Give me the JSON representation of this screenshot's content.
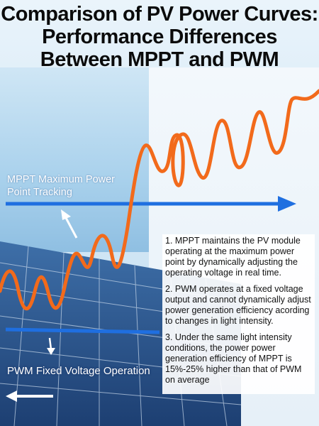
{
  "title": {
    "line1": "Comparison of PV Power Curves:",
    "line2": "Performance Differences",
    "line3": "Between MPPT and PWM"
  },
  "labels": {
    "mppt_line1": "MPPT Maximum Power",
    "mppt_line2": "Point Tracking",
    "pwm": "PWM Fixed Voltage Operation"
  },
  "notes": [
    "1. MPPT maintains the PV module operating at the maximum power point by dynamically adjusting the operating voltage in real time.",
    "2. PWM operates at a fixed voltage output and cannot dynamically adjust power generation efficiency acording to changes in light intensity.",
    "3. Under the same light intensity conditions, the power power generation efficiency of MPPT is 15%-25% higher than that of PWM on average"
  ],
  "colors": {
    "curve": "#f26a1b",
    "arrow_blue": "#1f6fe0",
    "white_arrow": "#ffffff"
  }
}
